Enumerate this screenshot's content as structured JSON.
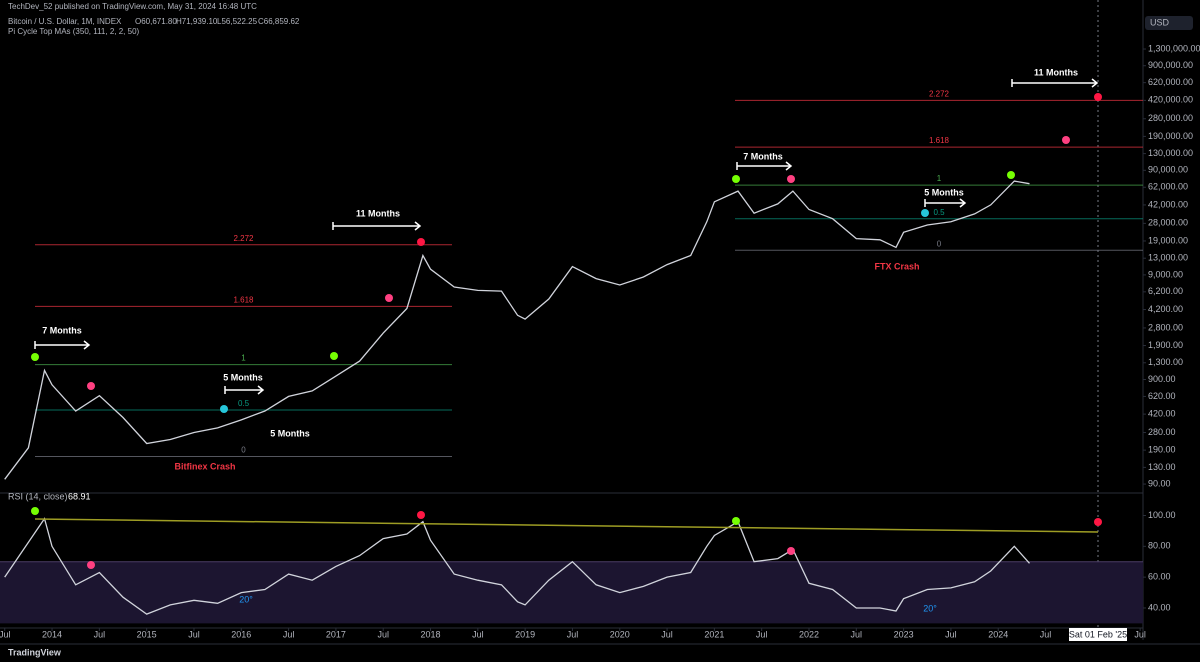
{
  "header": {
    "publisher": "TechDev_52 published on TradingView.com, May 31, 2024 16:48 UTC",
    "symbol": "Bitcoin / U.S. Dollar, 1M, INDEX",
    "open": "O60,671.80",
    "high": "H71,939.10",
    "low": "L56,522.25",
    "close": "C66,859.62",
    "indicator": "Pi Cycle Top MAs (350, 111, 2, 2, 50)",
    "currency": "USD",
    "crosshair": "Sat 01 Feb '25",
    "brand": "TradingView"
  },
  "chart_data": [
    {
      "type": "line",
      "log_scale": true,
      "color": "#d1d4dc",
      "x": [
        2013.5,
        2013.75,
        2013.92,
        2014.0,
        2014.25,
        2014.5,
        2014.75,
        2015.0,
        2015.25,
        2015.5,
        2015.75,
        2016.0,
        2016.25,
        2016.5,
        2016.75,
        2017.0,
        2017.25,
        2017.5,
        2017.75,
        2017.92,
        2018.0,
        2018.25,
        2018.5,
        2018.75,
        2018.92,
        2019.0,
        2019.25,
        2019.5,
        2019.75,
        2020.0,
        2020.25,
        2020.5,
        2020.75,
        2020.92,
        2021.0,
        2021.25,
        2021.42,
        2021.67,
        2021.83,
        2022.0,
        2022.25,
        2022.5,
        2022.75,
        2022.92,
        2023.0,
        2023.25,
        2023.5,
        2023.75,
        2023.92,
        2024.17,
        2024.33
      ],
      "series": [
        {
          "name": "Bitcoin / U.S. Dollar, 1M, INDEX",
          "color": "#d1d4dc",
          "values": [
            100,
            200,
            1100,
            800,
            450,
            630,
            390,
            220,
            240,
            280,
            310,
            370,
            450,
            620,
            700,
            970,
            1350,
            2500,
            4300,
            13800,
            10200,
            6900,
            6400,
            6300,
            3700,
            3400,
            5300,
            10800,
            8300,
            7200,
            8600,
            11300,
            13800,
            29000,
            45000,
            57000,
            35000,
            43000,
            57000,
            38000,
            31000,
            20000,
            19500,
            16500,
            23000,
            27000,
            29000,
            34500,
            42000,
            71000,
            67000
          ]
        }
      ],
      "xlim": [
        2013.45,
        2025.53
      ],
      "xticks": [
        {
          "value": 2013.5,
          "label": "Jul"
        },
        {
          "value": 2014,
          "label": "2014"
        },
        {
          "value": 2014.5,
          "label": "Jul"
        },
        {
          "value": 2015,
          "label": "2015"
        },
        {
          "value": 2015.5,
          "label": "Jul"
        },
        {
          "value": 2016,
          "label": "2016"
        },
        {
          "value": 2016.5,
          "label": "Jul"
        },
        {
          "value": 2017,
          "label": "2017"
        },
        {
          "value": 2017.5,
          "label": "Jul"
        },
        {
          "value": 2018,
          "label": "2018"
        },
        {
          "value": 2018.5,
          "label": "Jul"
        },
        {
          "value": 2019,
          "label": "2019"
        },
        {
          "value": 2019.5,
          "label": "Jul"
        },
        {
          "value": 2020,
          "label": "2020"
        },
        {
          "value": 2020.5,
          "label": "Jul"
        },
        {
          "value": 2021,
          "label": "2021"
        },
        {
          "value": 2021.5,
          "label": "Jul"
        },
        {
          "value": 2022,
          "label": "2022"
        },
        {
          "value": 2022.5,
          "label": "Jul"
        },
        {
          "value": 2023,
          "label": "2023"
        },
        {
          "value": 2023.5,
          "label": "Jul"
        },
        {
          "value": 2024,
          "label": "2024"
        },
        {
          "value": 2024.5,
          "label": "Jul"
        },
        {
          "value": 2025.5,
          "label": "Jul"
        }
      ],
      "ylim": [
        79,
        2750000
      ],
      "yticks": [
        {
          "value": 90,
          "label": "90.00"
        },
        {
          "value": 130,
          "label": "130.00"
        },
        {
          "value": 190,
          "label": "190.00"
        },
        {
          "value": 280,
          "label": "280.00"
        },
        {
          "value": 420,
          "label": "420.00"
        },
        {
          "value": 620,
          "label": "620.00"
        },
        {
          "value": 900,
          "label": "900.00"
        },
        {
          "value": 1300,
          "label": "1,300.00"
        },
        {
          "value": 1900,
          "label": "1,900.00"
        },
        {
          "value": 2800,
          "label": "2,800.00"
        },
        {
          "value": 4200,
          "label": "4,200.00"
        },
        {
          "value": 6200,
          "label": "6,200.00"
        },
        {
          "value": 9000,
          "label": "9,000.00"
        },
        {
          "value": 13000,
          "label": "13,000.00"
        },
        {
          "value": 19000,
          "label": "19,000.00"
        },
        {
          "value": 28000,
          "label": "28,000.00"
        },
        {
          "value": 42000,
          "label": "42,000.00"
        },
        {
          "value": 62000,
          "label": "62,000.00"
        },
        {
          "value": 90000,
          "label": "90,000.00"
        },
        {
          "value": 130000,
          "label": "130,000.00"
        },
        {
          "value": 190000,
          "label": "190,000.00"
        },
        {
          "value": 280000,
          "label": "280,000.00"
        },
        {
          "value": 420000,
          "label": "420,000.00"
        },
        {
          "value": 620000,
          "label": "620,000.00"
        },
        {
          "value": 900000,
          "label": "900,000.00"
        },
        {
          "value": 1300000,
          "label": "1,300,000.00"
        }
      ],
      "fib_levels": [
        {
          "label": "2.272",
          "value": 17500,
          "color": "#f23645"
        },
        {
          "label": "1.618",
          "value": 4500,
          "color": "#f23645"
        },
        {
          "label": "1",
          "value": 1250,
          "color": "#4caf50"
        },
        {
          "label": "0.5",
          "value": 460,
          "color": "#089981"
        },
        {
          "label": "0",
          "value": 165,
          "color": "#787b86"
        }
      ],
      "fib_levels_2": [
        {
          "label": "2.272",
          "value": 420000,
          "color": "#f23645"
        },
        {
          "label": "1.618",
          "value": 150000,
          "color": "#f23645"
        },
        {
          "label": "1",
          "value": 65000,
          "color": "#4caf50"
        },
        {
          "label": "0.5",
          "value": 31000,
          "color": "#089981"
        },
        {
          "label": "0",
          "value": 15500,
          "color": "#787b86"
        }
      ],
      "annotations": [
        "7 Months",
        "5 Months",
        "5 Months",
        "11 Months",
        "Bitfinex Crash",
        "7 Months",
        "5 Months",
        "FTX Crash",
        "11 Months"
      ]
    },
    {
      "type": "line",
      "title": "RSI (14, close)",
      "last_value": "68.91",
      "color": "#d1d4dc",
      "x": [
        2013.5,
        2013.92,
        2014.0,
        2014.25,
        2014.5,
        2014.75,
        2015.0,
        2015.25,
        2015.5,
        2015.75,
        2016.0,
        2016.25,
        2016.5,
        2016.75,
        2017.0,
        2017.25,
        2017.5,
        2017.75,
        2017.92,
        2018.0,
        2018.25,
        2018.5,
        2018.75,
        2018.92,
        2019.0,
        2019.25,
        2019.5,
        2019.75,
        2020.0,
        2020.25,
        2020.5,
        2020.75,
        2020.92,
        2021.0,
        2021.25,
        2021.42,
        2021.67,
        2021.83,
        2022.0,
        2022.25,
        2022.5,
        2022.75,
        2022.92,
        2023.0,
        2023.25,
        2023.5,
        2023.75,
        2023.92,
        2024.17,
        2024.33
      ],
      "series": [
        {
          "name": "RSI (14, close)",
          "color": "#d1d4dc",
          "values": [
            60,
            98,
            80,
            55,
            63,
            47,
            36,
            42,
            45,
            43,
            50,
            52,
            62,
            58,
            67,
            74,
            85,
            88,
            96,
            84,
            62,
            58,
            55,
            44,
            42,
            58,
            70,
            55,
            50,
            54,
            60,
            63,
            80,
            87,
            96,
            70,
            72,
            78,
            56,
            52,
            40,
            40,
            38,
            46,
            52,
            53,
            57,
            64,
            80,
            69
          ]
        }
      ],
      "band": [
        30,
        70
      ],
      "ylim": [
        27,
        112
      ],
      "yticks": [
        {
          "value": 40,
          "label": "40.00"
        },
        {
          "value": 60,
          "label": "60.00"
        },
        {
          "value": 80,
          "label": "80.00"
        },
        {
          "value": 100,
          "label": "100.00"
        }
      ],
      "annotations": [
        "20°",
        "20°"
      ]
    }
  ]
}
